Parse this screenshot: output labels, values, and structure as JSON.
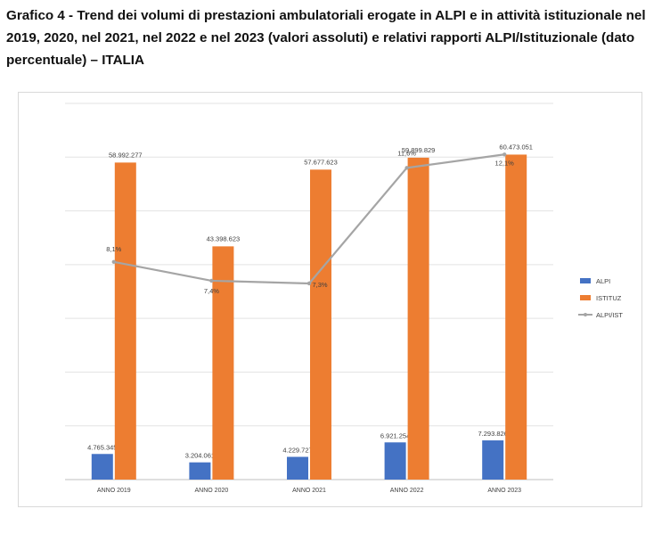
{
  "title": "Grafico 4 - Trend dei volumi di prestazioni ambulatoriali erogate in ALPI e in attività istituzionale nel 2019, 2020, nel 2021, nel 2022 e nel 2023 (valori assoluti) e relativi rapporti ALPI/Istituzionale (dato percentuale) – ITALIA",
  "chart_data": {
    "type": "bar",
    "categories": [
      "ANNO 2019",
      "ANNO 2020",
      "ANNO 2021",
      "ANNO 2022",
      "ANNO 2023"
    ],
    "series": [
      {
        "name": "ALPI",
        "color": "#4472c4",
        "values": [
          4765345,
          3204061,
          4229727,
          6921254,
          7293826
        ],
        "labels": [
          "4.765.345",
          "3.204.061",
          "4.229.727",
          "6.921.254",
          "7.293.826"
        ]
      },
      {
        "name": "ISTITUZ",
        "color": "#ed7d31",
        "values": [
          58992277,
          43398623,
          57677623,
          59899829,
          60473051
        ],
        "labels": [
          "58.992.277",
          "43.398.623",
          "57.677.623",
          "59.899.829",
          "60.473.051"
        ]
      },
      {
        "name": "ALPI/IST",
        "type": "line",
        "color": "#a5a5a5",
        "values": [
          8.1,
          7.4,
          7.3,
          11.6,
          12.1
        ],
        "labels": [
          "8,1%",
          "7,4%",
          "7,3%",
          "11,6%",
          "12,1%"
        ]
      }
    ],
    "ylim": [
      0,
      70000000
    ],
    "y2lim": [
      0,
      14
    ],
    "grid": true,
    "legend_position": "right"
  }
}
